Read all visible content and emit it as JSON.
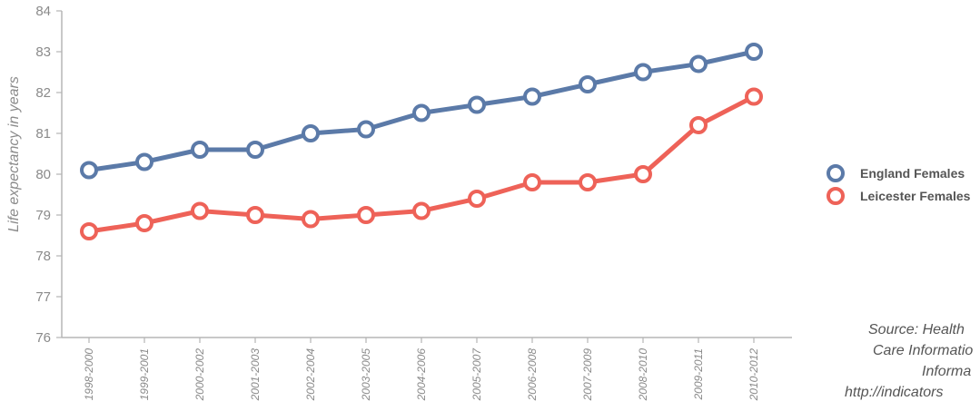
{
  "chart_data": {
    "type": "line",
    "title": "",
    "xlabel": "",
    "ylabel": "Life expectancy in years",
    "ylim": [
      76,
      84
    ],
    "yticks": [
      "76",
      "77",
      "78",
      "79",
      "80",
      "81",
      "82",
      "83",
      "84"
    ],
    "categories": [
      "1998-2000",
      "1999-2001",
      "2000-2002",
      "2001-2003",
      "2002-2004",
      "2003-2005",
      "2004-2006",
      "2005-2007",
      "2006-2008",
      "2007-2009",
      "2008-2010",
      "2009-2011",
      "2010-2012"
    ],
    "series": [
      {
        "name": "England Females",
        "color": "#5b7aa8",
        "values": [
          80.1,
          80.3,
          80.6,
          80.6,
          81.0,
          81.1,
          81.5,
          81.7,
          81.9,
          82.2,
          82.5,
          82.7,
          83.0
        ]
      },
      {
        "name": "Leicester Females",
        "color": "#ee6258",
        "values": [
          78.6,
          78.8,
          79.1,
          79.0,
          78.9,
          79.0,
          79.1,
          79.4,
          79.8,
          79.8,
          80.0,
          81.2,
          81.9
        ]
      }
    ],
    "grid": false,
    "legend_position": "right"
  },
  "source_lines": [
    "Source: Health",
    "Care Informatio",
    "Informa",
    "http://indicators"
  ]
}
